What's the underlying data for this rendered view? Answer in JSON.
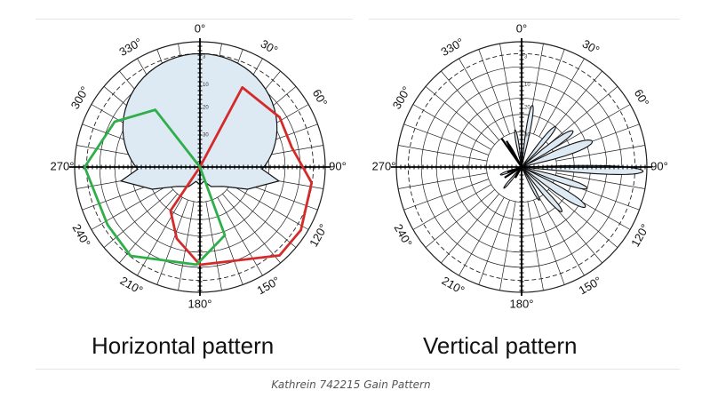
{
  "diagram": {
    "angle_labels": [
      "0°",
      "30°",
      "60°",
      "90°",
      "120°",
      "150°",
      "180°",
      "210°",
      "240°",
      "270°",
      "300°",
      "330°"
    ],
    "db_labels": [
      "3",
      "10",
      "20",
      "30"
    ],
    "panels": [
      {
        "title": "Horizontal pattern"
      },
      {
        "title": "Vertical pattern"
      }
    ]
  },
  "caption": "Kathrein 742215 Gain Pattern",
  "colors": {
    "lobe_fill": "#dde9f3",
    "red_trace": "#d42a2a",
    "green_trace": "#2fae4a",
    "grid": "#222222"
  }
}
